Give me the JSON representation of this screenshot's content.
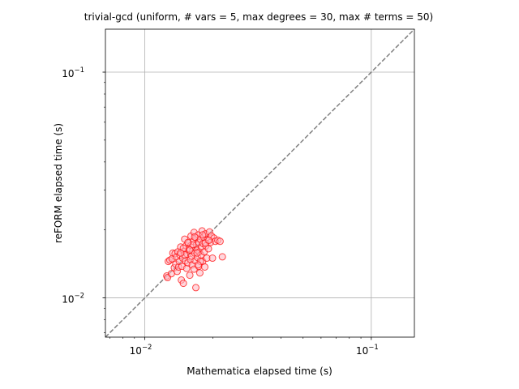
{
  "chart_data": {
    "type": "scatter",
    "title": "trivial-gcd (uniform, # vars = 5, max degrees = 30, max # terms = 50)",
    "xlabel": "Mathematica elapsed time (s)",
    "ylabel": "reFORM elapsed time (s)",
    "xscale": "log",
    "yscale": "log",
    "xlim": [
      0.0067,
      0.155
    ],
    "ylim": [
      0.0067,
      0.155
    ],
    "grid": true,
    "reference_line": "y = x",
    "x_ticks": [
      {
        "base": "10",
        "exp": "−2",
        "value": 0.01
      },
      {
        "base": "10",
        "exp": "−1",
        "value": 0.1
      }
    ],
    "y_ticks": [
      {
        "base": "10",
        "exp": "−2",
        "value": 0.01
      },
      {
        "base": "10",
        "exp": "−1",
        "value": 0.1
      }
    ],
    "marker_face": "#ffb6c1",
    "marker_edge": "#ff0000",
    "reference_color": "#808080",
    "points": [
      [
        0.0125,
        0.0125
      ],
      [
        0.0126,
        0.0123
      ],
      [
        0.0127,
        0.0145
      ],
      [
        0.0129,
        0.0147
      ],
      [
        0.0131,
        0.0128
      ],
      [
        0.0132,
        0.0149
      ],
      [
        0.0133,
        0.0158
      ],
      [
        0.0135,
        0.0136
      ],
      [
        0.0136,
        0.0157
      ],
      [
        0.0137,
        0.0141
      ],
      [
        0.0138,
        0.0152
      ],
      [
        0.0139,
        0.0131
      ],
      [
        0.014,
        0.016
      ],
      [
        0.0141,
        0.0137
      ],
      [
        0.0142,
        0.0145
      ],
      [
        0.0143,
        0.0155
      ],
      [
        0.0144,
        0.0168
      ],
      [
        0.0145,
        0.012
      ],
      [
        0.0146,
        0.0138
      ],
      [
        0.0147,
        0.015
      ],
      [
        0.0148,
        0.0116
      ],
      [
        0.0149,
        0.0161
      ],
      [
        0.015,
        0.0182
      ],
      [
        0.0151,
        0.0146
      ],
      [
        0.0152,
        0.017
      ],
      [
        0.0153,
        0.0135
      ],
      [
        0.0154,
        0.0156
      ],
      [
        0.0155,
        0.0143
      ],
      [
        0.0156,
        0.0175
      ],
      [
        0.0157,
        0.0165
      ],
      [
        0.0158,
        0.0126
      ],
      [
        0.0159,
        0.0148
      ],
      [
        0.016,
        0.0188
      ],
      [
        0.016,
        0.0171
      ],
      [
        0.0161,
        0.0153
      ],
      [
        0.0162,
        0.014
      ],
      [
        0.0163,
        0.0162
      ],
      [
        0.0164,
        0.0178
      ],
      [
        0.0165,
        0.0195
      ],
      [
        0.0165,
        0.0134
      ],
      [
        0.0166,
        0.0158
      ],
      [
        0.0167,
        0.0146
      ],
      [
        0.0168,
        0.0185
      ],
      [
        0.0168,
        0.0111
      ],
      [
        0.0169,
        0.0172
      ],
      [
        0.017,
        0.0163
      ],
      [
        0.0171,
        0.0151
      ],
      [
        0.0172,
        0.019
      ],
      [
        0.0173,
        0.0138
      ],
      [
        0.0173,
        0.0176
      ],
      [
        0.0174,
        0.016
      ],
      [
        0.0175,
        0.0129
      ],
      [
        0.0176,
        0.0182
      ],
      [
        0.0177,
        0.0155
      ],
      [
        0.0178,
        0.0168
      ],
      [
        0.0179,
        0.0198
      ],
      [
        0.018,
        0.0145
      ],
      [
        0.0181,
        0.0174
      ],
      [
        0.0182,
        0.0186
      ],
      [
        0.0183,
        0.016
      ],
      [
        0.0184,
        0.0137
      ],
      [
        0.0185,
        0.0192
      ],
      [
        0.0186,
        0.017
      ],
      [
        0.0188,
        0.015
      ],
      [
        0.019,
        0.0181
      ],
      [
        0.0191,
        0.0165
      ],
      [
        0.0193,
        0.0196
      ],
      [
        0.0195,
        0.0176
      ],
      [
        0.0197,
        0.0188
      ],
      [
        0.0199,
        0.015
      ],
      [
        0.0202,
        0.0184
      ],
      [
        0.0205,
        0.0178
      ],
      [
        0.021,
        0.018
      ],
      [
        0.0215,
        0.0178
      ],
      [
        0.022,
        0.0152
      ],
      [
        0.0163,
        0.0172
      ],
      [
        0.017,
        0.0158
      ],
      [
        0.0158,
        0.0163
      ],
      [
        0.0176,
        0.0145
      ],
      [
        0.018,
        0.019
      ],
      [
        0.0148,
        0.0166
      ],
      [
        0.0185,
        0.0175
      ],
      [
        0.0166,
        0.0186
      ],
      [
        0.0172,
        0.014
      ],
      [
        0.0155,
        0.0176
      ],
      [
        0.0192,
        0.018
      ],
      [
        0.015,
        0.0155
      ],
      [
        0.0144,
        0.0158
      ]
    ]
  }
}
